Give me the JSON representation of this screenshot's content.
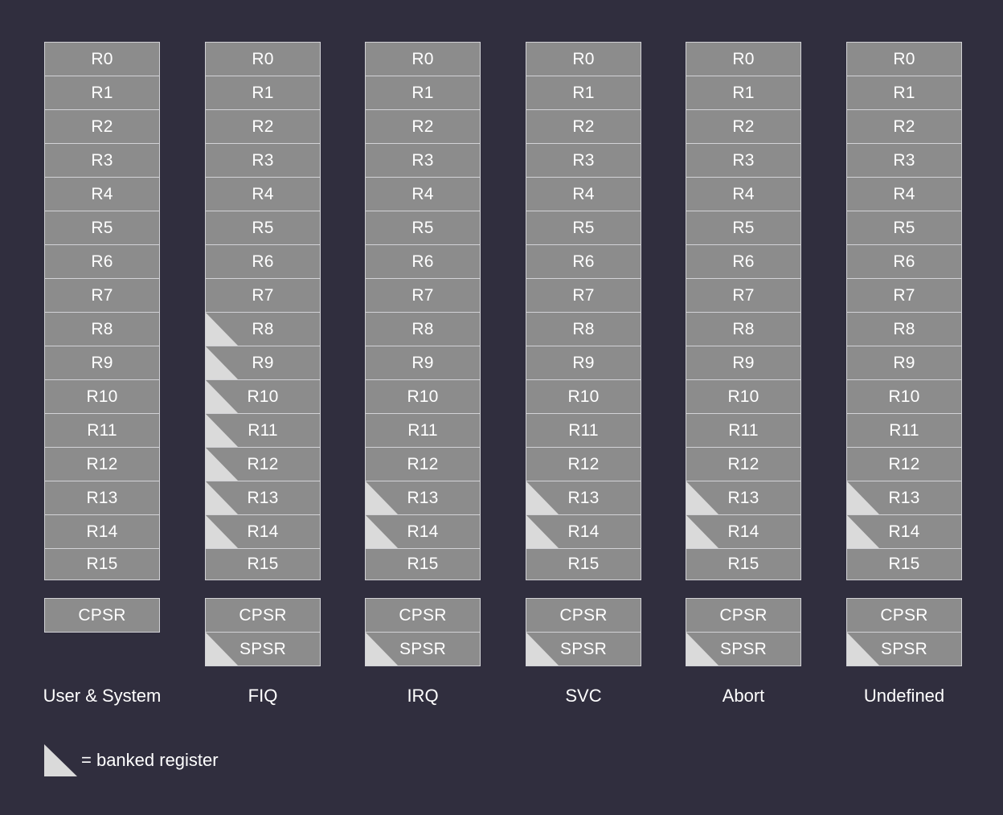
{
  "modes": [
    {
      "name": "User & System",
      "registers": [
        {
          "label": "R0",
          "banked": false
        },
        {
          "label": "R1",
          "banked": false
        },
        {
          "label": "R2",
          "banked": false
        },
        {
          "label": "R3",
          "banked": false
        },
        {
          "label": "R4",
          "banked": false
        },
        {
          "label": "R5",
          "banked": false
        },
        {
          "label": "R6",
          "banked": false
        },
        {
          "label": "R7",
          "banked": false
        },
        {
          "label": "R8",
          "banked": false
        },
        {
          "label": "R9",
          "banked": false
        },
        {
          "label": "R10",
          "banked": false
        },
        {
          "label": "R11",
          "banked": false
        },
        {
          "label": "R12",
          "banked": false
        },
        {
          "label": "R13",
          "banked": false
        },
        {
          "label": "R14",
          "banked": false
        },
        {
          "label": "R15",
          "banked": false
        }
      ],
      "status_registers": [
        {
          "label": "CPSR",
          "banked": false
        }
      ]
    },
    {
      "name": "FIQ",
      "registers": [
        {
          "label": "R0",
          "banked": false
        },
        {
          "label": "R1",
          "banked": false
        },
        {
          "label": "R2",
          "banked": false
        },
        {
          "label": "R3",
          "banked": false
        },
        {
          "label": "R4",
          "banked": false
        },
        {
          "label": "R5",
          "banked": false
        },
        {
          "label": "R6",
          "banked": false
        },
        {
          "label": "R7",
          "banked": false
        },
        {
          "label": "R8",
          "banked": true
        },
        {
          "label": "R9",
          "banked": true
        },
        {
          "label": "R10",
          "banked": true
        },
        {
          "label": "R11",
          "banked": true
        },
        {
          "label": "R12",
          "banked": true
        },
        {
          "label": "R13",
          "banked": true
        },
        {
          "label": "R14",
          "banked": true
        },
        {
          "label": "R15",
          "banked": false
        }
      ],
      "status_registers": [
        {
          "label": "CPSR",
          "banked": false
        },
        {
          "label": "SPSR",
          "banked": true
        }
      ]
    },
    {
      "name": "IRQ",
      "registers": [
        {
          "label": "R0",
          "banked": false
        },
        {
          "label": "R1",
          "banked": false
        },
        {
          "label": "R2",
          "banked": false
        },
        {
          "label": "R3",
          "banked": false
        },
        {
          "label": "R4",
          "banked": false
        },
        {
          "label": "R5",
          "banked": false
        },
        {
          "label": "R6",
          "banked": false
        },
        {
          "label": "R7",
          "banked": false
        },
        {
          "label": "R8",
          "banked": false
        },
        {
          "label": "R9",
          "banked": false
        },
        {
          "label": "R10",
          "banked": false
        },
        {
          "label": "R11",
          "banked": false
        },
        {
          "label": "R12",
          "banked": false
        },
        {
          "label": "R13",
          "banked": true
        },
        {
          "label": "R14",
          "banked": true
        },
        {
          "label": "R15",
          "banked": false
        }
      ],
      "status_registers": [
        {
          "label": "CPSR",
          "banked": false
        },
        {
          "label": "SPSR",
          "banked": true
        }
      ]
    },
    {
      "name": "SVC",
      "registers": [
        {
          "label": "R0",
          "banked": false
        },
        {
          "label": "R1",
          "banked": false
        },
        {
          "label": "R2",
          "banked": false
        },
        {
          "label": "R3",
          "banked": false
        },
        {
          "label": "R4",
          "banked": false
        },
        {
          "label": "R5",
          "banked": false
        },
        {
          "label": "R6",
          "banked": false
        },
        {
          "label": "R7",
          "banked": false
        },
        {
          "label": "R8",
          "banked": false
        },
        {
          "label": "R9",
          "banked": false
        },
        {
          "label": "R10",
          "banked": false
        },
        {
          "label": "R11",
          "banked": false
        },
        {
          "label": "R12",
          "banked": false
        },
        {
          "label": "R13",
          "banked": true
        },
        {
          "label": "R14",
          "banked": true
        },
        {
          "label": "R15",
          "banked": false
        }
      ],
      "status_registers": [
        {
          "label": "CPSR",
          "banked": false
        },
        {
          "label": "SPSR",
          "banked": true
        }
      ]
    },
    {
      "name": "Abort",
      "registers": [
        {
          "label": "R0",
          "banked": false
        },
        {
          "label": "R1",
          "banked": false
        },
        {
          "label": "R2",
          "banked": false
        },
        {
          "label": "R3",
          "banked": false
        },
        {
          "label": "R4",
          "banked": false
        },
        {
          "label": "R5",
          "banked": false
        },
        {
          "label": "R6",
          "banked": false
        },
        {
          "label": "R7",
          "banked": false
        },
        {
          "label": "R8",
          "banked": false
        },
        {
          "label": "R9",
          "banked": false
        },
        {
          "label": "R10",
          "banked": false
        },
        {
          "label": "R11",
          "banked": false
        },
        {
          "label": "R12",
          "banked": false
        },
        {
          "label": "R13",
          "banked": true
        },
        {
          "label": "R14",
          "banked": true
        },
        {
          "label": "R15",
          "banked": false
        }
      ],
      "status_registers": [
        {
          "label": "CPSR",
          "banked": false
        },
        {
          "label": "SPSR",
          "banked": true
        }
      ]
    },
    {
      "name": "Undefined",
      "registers": [
        {
          "label": "R0",
          "banked": false
        },
        {
          "label": "R1",
          "banked": false
        },
        {
          "label": "R2",
          "banked": false
        },
        {
          "label": "R3",
          "banked": false
        },
        {
          "label": "R4",
          "banked": false
        },
        {
          "label": "R5",
          "banked": false
        },
        {
          "label": "R6",
          "banked": false
        },
        {
          "label": "R7",
          "banked": false
        },
        {
          "label": "R8",
          "banked": false
        },
        {
          "label": "R9",
          "banked": false
        },
        {
          "label": "R10",
          "banked": false
        },
        {
          "label": "R11",
          "banked": false
        },
        {
          "label": "R12",
          "banked": false
        },
        {
          "label": "R13",
          "banked": true
        },
        {
          "label": "R14",
          "banked": true
        },
        {
          "label": "R15",
          "banked": false
        }
      ],
      "status_registers": [
        {
          "label": "CPSR",
          "banked": false
        },
        {
          "label": "SPSR",
          "banked": true
        }
      ]
    }
  ],
  "legend": {
    "icon": "banked-register-triangle-icon",
    "text": "= banked register"
  },
  "colors": {
    "background": "#302e3e",
    "cell": "#8c8c8c",
    "banked_marker": "#dadada",
    "cell_border": "#d2d2d6",
    "text": "#ffffff"
  }
}
